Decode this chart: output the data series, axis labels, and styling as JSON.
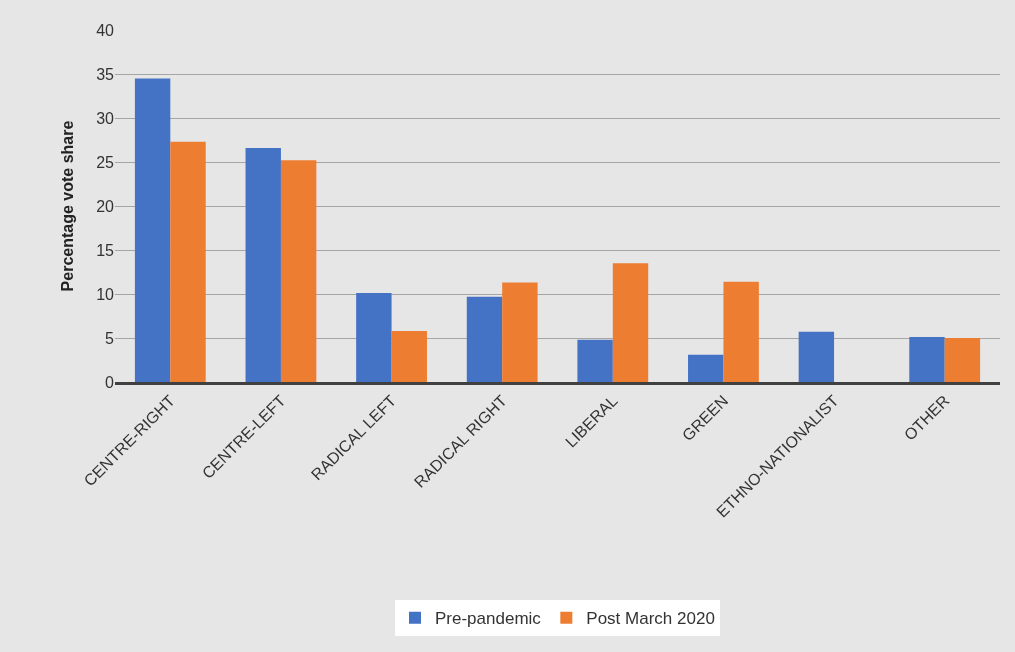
{
  "chart_data": {
    "type": "bar",
    "ylabel": "Percentage vote share",
    "categories": [
      "CENTRE-RIGHT",
      "CENTRE-LEFT",
      "RADICAL LEFT",
      "RADICAL RIGHT",
      "LIBERAL",
      "GREEN",
      "ETHNO-NATIONALIST",
      "OTHER"
    ],
    "series": [
      {
        "name": "Pre-pandemic",
        "color": "#4472c4",
        "values": [
          34.5,
          26.6,
          10.1,
          9.7,
          4.8,
          3.1,
          5.7,
          5.1
        ]
      },
      {
        "name": "Post March 2020",
        "color": "#ed7d31",
        "values": [
          27.3,
          25.2,
          5.8,
          11.3,
          13.5,
          11.4,
          null,
          5.0
        ]
      }
    ],
    "ylim": [
      0,
      40
    ],
    "yticks": [
      0,
      5,
      10,
      15,
      20,
      25,
      30,
      35,
      40
    ],
    "grid": "y",
    "legend": "bottom"
  }
}
